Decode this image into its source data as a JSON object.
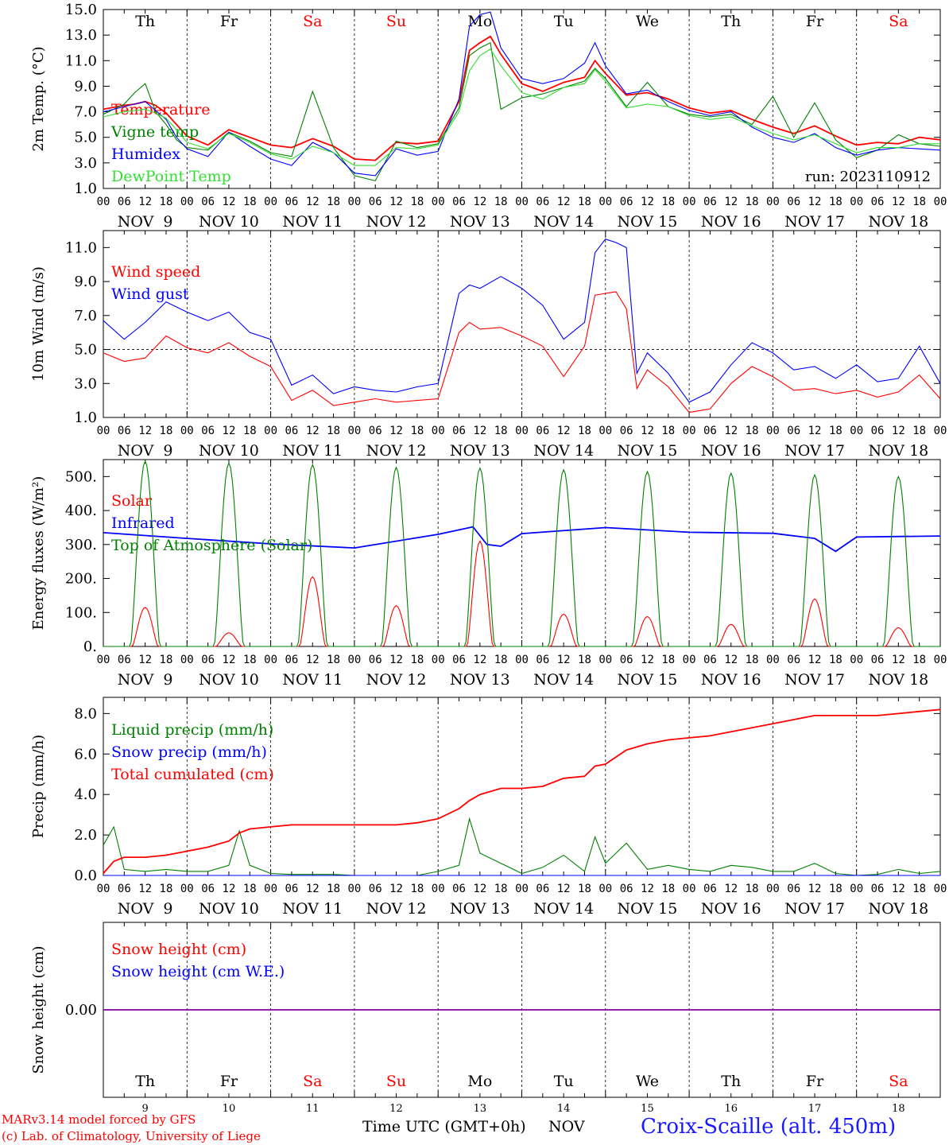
{
  "meta": {
    "model_line": "MARv3.14 model forced by GFS",
    "credit_line": "(c) Lab. of Climatology, University of Liege",
    "time_axis_label": "Time UTC (GMT+0h)",
    "month_label": "NOV",
    "station": "Croix-Scaille (alt. 450m)",
    "run": "run: 2023110912",
    "colors": {
      "red": "#ff0000",
      "green": "#008000",
      "blue": "#0000ff",
      "lightgreen": "#33dd33",
      "purple": "#8000a0",
      "weekend": "#ff0000"
    }
  },
  "axis": {
    "day_names": [
      "Th",
      "Fr",
      "Sa",
      "Su",
      "Mo",
      "Tu",
      "We",
      "Th",
      "Fr",
      "Sa"
    ],
    "weekend_flags": [
      false,
      false,
      true,
      true,
      false,
      false,
      false,
      false,
      false,
      true
    ],
    "date_labels": [
      "NOV  9",
      "NOV 10",
      "NOV 11",
      "NOV 12",
      "NOV 13",
      "NOV 14",
      "NOV 15",
      "NOV 16",
      "NOV 17",
      "NOV 18"
    ],
    "hour_labels": [
      "00",
      "06",
      "12",
      "18"
    ],
    "final_hour_label": "00",
    "bottom_day_numbers": [
      "9",
      "10",
      "11",
      "12",
      "13",
      "14",
      "15",
      "16",
      "17",
      "18"
    ],
    "x_range_hours": [
      0,
      240
    ]
  },
  "chart_data": [
    {
      "type": "line",
      "ylabel": "2m Temp. (°C)",
      "ylim": [
        1.0,
        15.0
      ],
      "yticks": [
        "1.0",
        "3.0",
        "5.0",
        "7.0",
        "9.0",
        "11.0",
        "13.0",
        "15.0"
      ],
      "x": [
        0,
        6,
        9,
        12,
        15,
        18,
        21,
        24,
        30,
        36,
        42,
        48,
        54,
        60,
        66,
        72,
        78,
        84,
        90,
        96,
        102,
        105,
        108,
        111,
        114,
        120,
        126,
        132,
        138,
        141,
        144,
        150,
        156,
        162,
        168,
        174,
        180,
        186,
        192,
        198,
        204,
        210,
        216,
        222,
        228,
        234,
        240
      ],
      "series": [
        {
          "name": "Temperature",
          "color": "#ff0000",
          "values": [
            7.2,
            7.5,
            7.6,
            7.8,
            7.5,
            6.9,
            6.0,
            5.1,
            4.4,
            5.6,
            5.0,
            4.4,
            4.2,
            4.9,
            4.3,
            3.3,
            3.2,
            4.6,
            4.5,
            4.7,
            7.8,
            11.8,
            12.4,
            12.9,
            11.5,
            9.2,
            8.6,
            9.3,
            9.7,
            11.0,
            10.0,
            8.3,
            8.5,
            8.0,
            7.3,
            6.9,
            7.1,
            6.4,
            5.8,
            5.3,
            5.9,
            5.1,
            4.4,
            4.6,
            4.5,
            5.0,
            4.8
          ]
        },
        {
          "name": "Vigne temp",
          "color": "#008000",
          "values": [
            6.8,
            7.6,
            8.5,
            9.2,
            7.0,
            6.0,
            4.8,
            4.2,
            4.0,
            5.4,
            4.7,
            3.8,
            3.5,
            8.6,
            4.2,
            2.0,
            1.6,
            4.7,
            4.2,
            4.5,
            7.3,
            11.4,
            12.0,
            12.4,
            7.2,
            8.1,
            8.4,
            8.9,
            9.4,
            10.4,
            9.6,
            7.4,
            9.3,
            7.4,
            6.8,
            6.6,
            6.8,
            6.0,
            8.2,
            5.0,
            7.7,
            4.8,
            3.4,
            4.0,
            5.2,
            4.5,
            4.3
          ]
        },
        {
          "name": "Humidex",
          "color": "#0000ff",
          "values": [
            7.0,
            7.4,
            7.6,
            7.8,
            7.1,
            6.4,
            5.0,
            4.1,
            3.5,
            5.4,
            4.3,
            3.3,
            2.8,
            4.6,
            3.8,
            2.2,
            2.0,
            4.1,
            3.6,
            3.9,
            8.0,
            13.7,
            14.6,
            14.8,
            12.0,
            9.6,
            9.2,
            9.6,
            10.8,
            12.4,
            10.6,
            8.4,
            8.7,
            7.8,
            7.1,
            6.7,
            7.0,
            5.8,
            5.0,
            4.6,
            5.3,
            4.2,
            3.6,
            4.0,
            4.2,
            4.1,
            4.0
          ]
        },
        {
          "name": "DewPoint Temp",
          "color": "#33dd33",
          "values": [
            6.6,
            7.0,
            7.1,
            7.2,
            6.9,
            6.5,
            5.6,
            4.6,
            4.1,
            5.3,
            4.6,
            3.7,
            3.3,
            4.3,
            3.8,
            2.8,
            2.8,
            4.2,
            4.1,
            4.4,
            7.0,
            10.2,
            11.4,
            11.9,
            10.6,
            8.5,
            8.0,
            8.9,
            9.2,
            10.3,
            9.4,
            7.3,
            7.6,
            7.4,
            6.7,
            6.4,
            6.6,
            5.9,
            5.3,
            4.8,
            5.2,
            4.5,
            3.8,
            4.2,
            4.2,
            4.5,
            4.5
          ]
        }
      ]
    },
    {
      "type": "line",
      "ylabel": "10m Wind (m/s)",
      "ylim": [
        1.0,
        12.0
      ],
      "yticks": [
        "1.0",
        "3.0",
        "5.0",
        "7.0",
        "9.0",
        "11.0"
      ],
      "reference_line": 5.0,
      "x": [
        0,
        6,
        12,
        18,
        24,
        30,
        36,
        42,
        48,
        54,
        60,
        66,
        72,
        78,
        84,
        90,
        96,
        102,
        105,
        108,
        114,
        120,
        126,
        132,
        138,
        141,
        144,
        147,
        150,
        153,
        156,
        162,
        168,
        174,
        180,
        186,
        192,
        198,
        204,
        210,
        216,
        222,
        228,
        234,
        240
      ],
      "series": [
        {
          "name": "Wind speed",
          "color": "#ff0000",
          "values": [
            4.8,
            4.3,
            4.5,
            5.8,
            5.1,
            4.8,
            5.4,
            4.6,
            4.0,
            2.0,
            2.6,
            1.7,
            1.9,
            2.1,
            1.9,
            2.0,
            2.1,
            6.0,
            6.6,
            6.2,
            6.3,
            5.8,
            5.2,
            3.4,
            5.2,
            8.2,
            8.3,
            8.4,
            7.4,
            2.7,
            3.8,
            2.8,
            1.3,
            1.5,
            3.0,
            4.0,
            3.4,
            2.6,
            2.7,
            2.4,
            2.6,
            2.2,
            2.5,
            3.5,
            2.1
          ]
        },
        {
          "name": "Wind gust",
          "color": "#0000ff",
          "values": [
            6.7,
            5.6,
            6.6,
            7.8,
            7.2,
            6.7,
            7.2,
            6.0,
            5.6,
            2.9,
            3.5,
            2.4,
            2.8,
            2.6,
            2.5,
            2.8,
            3.0,
            8.3,
            8.8,
            8.6,
            9.3,
            8.6,
            7.6,
            5.6,
            6.6,
            10.7,
            11.5,
            11.3,
            11.0,
            3.6,
            4.8,
            3.6,
            1.9,
            2.5,
            4.1,
            5.4,
            4.8,
            3.8,
            4.0,
            3.3,
            4.1,
            3.1,
            3.3,
            5.2,
            3.0
          ]
        }
      ]
    },
    {
      "type": "line",
      "ylabel": "Energy fluxes (W/m²)",
      "ylim": [
        0,
        550
      ],
      "yticks": [
        "0.",
        "100.",
        "200.",
        "300.",
        "400.",
        "500."
      ],
      "x": [
        0,
        24,
        48,
        72,
        96,
        106,
        110,
        114,
        120,
        144,
        168,
        192,
        204,
        210,
        216,
        240
      ],
      "series": [
        {
          "name": "Solar",
          "color": "#ff0000",
          "daily_peaks": [
            115,
            40,
            205,
            120,
            310,
            95,
            88,
            65,
            140,
            55
          ]
        },
        {
          "name": "Infrared",
          "color": "#0000ff",
          "values": [
            335,
            318,
            302,
            290,
            330,
            352,
            300,
            295,
            332,
            350,
            336,
            333,
            318,
            280,
            322,
            325
          ]
        },
        {
          "name": "Top of Atmosphere (Solar)",
          "color": "#008000",
          "daily_peaks": [
            545,
            540,
            535,
            527,
            525,
            520,
            515,
            510,
            505,
            500
          ]
        }
      ]
    },
    {
      "type": "line",
      "ylabel": "Precip (mm/h)",
      "ylim": [
        0,
        8.8
      ],
      "yticks": [
        "0.0",
        "2.0",
        "4.0",
        "6.0",
        "8.0"
      ],
      "x": [
        0,
        3,
        6,
        12,
        18,
        24,
        30,
        36,
        39,
        42,
        48,
        54,
        60,
        66,
        72,
        78,
        84,
        90,
        96,
        102,
        105,
        108,
        114,
        120,
        126,
        132,
        138,
        141,
        144,
        150,
        156,
        162,
        168,
        174,
        180,
        186,
        192,
        198,
        204,
        210,
        216,
        222,
        228,
        234,
        240
      ],
      "series": [
        {
          "name": "Liquid precip (mm/h)",
          "color": "#008000",
          "values": [
            1.5,
            2.4,
            0.3,
            0.2,
            0.3,
            0.2,
            0.2,
            0.5,
            2.2,
            0.5,
            0.1,
            0.05,
            0.05,
            0.05,
            0.0,
            0.0,
            0.0,
            0.0,
            0.2,
            0.5,
            2.8,
            1.1,
            0.6,
            0.1,
            0.4,
            1.0,
            0.2,
            1.9,
            0.6,
            1.6,
            0.3,
            0.5,
            0.3,
            0.2,
            0.5,
            0.4,
            0.2,
            0.2,
            0.6,
            0.1,
            0.0,
            0.05,
            0.3,
            0.1,
            0.2
          ]
        },
        {
          "name": "Snow precip (mm/h)",
          "color": "#0000ff",
          "values": [
            0,
            0,
            0,
            0,
            0,
            0,
            0,
            0,
            0,
            0,
            0,
            0,
            0,
            0,
            0,
            0,
            0,
            0,
            0,
            0,
            0,
            0,
            0,
            0,
            0,
            0,
            0,
            0,
            0,
            0,
            0,
            0,
            0,
            0,
            0,
            0,
            0,
            0,
            0,
            0,
            0,
            0,
            0,
            0,
            0
          ]
        },
        {
          "name": "Total cumulated (cm)",
          "color": "#ff0000",
          "values": [
            0.1,
            0.7,
            0.9,
            0.9,
            1.0,
            1.2,
            1.4,
            1.7,
            2.1,
            2.3,
            2.4,
            2.5,
            2.5,
            2.5,
            2.5,
            2.5,
            2.5,
            2.6,
            2.8,
            3.3,
            3.7,
            4.0,
            4.3,
            4.3,
            4.4,
            4.8,
            4.9,
            5.4,
            5.5,
            6.2,
            6.5,
            6.7,
            6.8,
            6.9,
            7.1,
            7.3,
            7.5,
            7.7,
            7.9,
            7.9,
            7.9,
            7.9,
            8.0,
            8.1,
            8.2
          ]
        }
      ]
    },
    {
      "type": "line",
      "ylabel": "Snow height (cm)",
      "ylim": [
        -1,
        1
      ],
      "yticks": [
        "0.00"
      ],
      "x": [
        0,
        240
      ],
      "series": [
        {
          "name": "Snow height (cm)",
          "color": "#ff0000",
          "values": [
            0,
            0
          ]
        },
        {
          "name": "Snow height (cm W.E.)",
          "color": "#0000ff",
          "values": [
            0,
            0
          ]
        }
      ]
    }
  ]
}
